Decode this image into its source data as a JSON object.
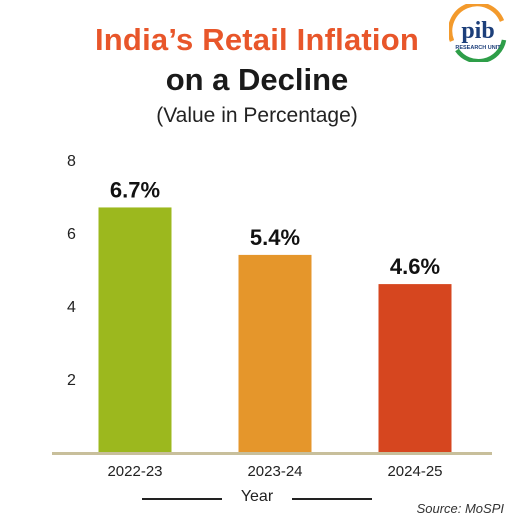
{
  "header": {
    "title_line1": "India’s Retail Inflation",
    "title_line2": "on a Decline",
    "subtitle": "(Value in Percentage)"
  },
  "logo": {
    "brand": "pib",
    "caption": "RESEARCH UNIT",
    "icon": "pib-research-unit-logo"
  },
  "colors": {
    "title_accent": "#e8562a",
    "bar_2022_23": "#9cb81e",
    "bar_2023_24": "#e5962b",
    "bar_2024_25": "#d6461f",
    "baseline": "#c8bf9b"
  },
  "footer": {
    "source": "Source: MoSPI"
  },
  "chart_data": {
    "type": "bar",
    "title": "India’s Retail Inflation on a Decline",
    "subtitle": "(Value in Percentage)",
    "xlabel": "Year",
    "ylabel": "",
    "categories": [
      "2022-23",
      "2023-24",
      "2024-25"
    ],
    "values": [
      6.7,
      5.4,
      4.6
    ],
    "value_labels": [
      "6.7%",
      "5.4%",
      "4.6%"
    ],
    "ylim": [
      0,
      8
    ],
    "yticks": [
      2,
      4,
      6,
      8
    ],
    "grid": false,
    "legend": "none"
  }
}
